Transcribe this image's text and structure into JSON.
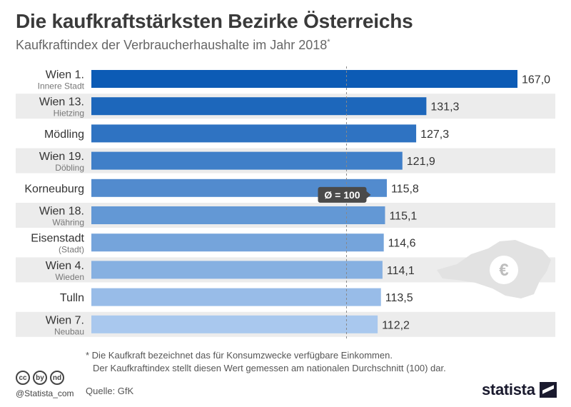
{
  "header": {
    "title": "Die kaufkraftstärksten Bezirke Österreichs",
    "subtitle": "Kaufkraftindex der Verbraucherhaushalte im Jahr 2018",
    "subtitle_mark": "*"
  },
  "footnote": {
    "line1": "* Die Kaufkraft bezeichnet das für Konsumzwecke verfügbare Einkommen.",
    "line2": "Der Kaufkraftindex stellt diesen Wert gemessen am nationalen Durchschnitt (100) dar."
  },
  "source": "Quelle: GfK",
  "handle": "@Statista_com",
  "license_icons": [
    "cc",
    "by",
    "nd"
  ],
  "brand": "statista",
  "decoration": {
    "icon": "austria-map-euro-icon",
    "symbol": "€"
  },
  "colors": {
    "bar_dark": "#0c5bb5",
    "bar_light": "#a9c8ee",
    "row_band": "#ececec",
    "reference_line": "#888888",
    "marker_bg": "#4a4a4a"
  },
  "chart_data": {
    "type": "bar",
    "orientation": "horizontal",
    "categories": [
      {
        "name": "Wien 1.",
        "sub": "Innere Stadt"
      },
      {
        "name": "Wien 13.",
        "sub": "Hietzing"
      },
      {
        "name": "Mödling",
        "sub": ""
      },
      {
        "name": "Wien 19.",
        "sub": "Döbling"
      },
      {
        "name": "Korneuburg",
        "sub": ""
      },
      {
        "name": "Wien 18.",
        "sub": "Währing"
      },
      {
        "name": "Eisenstadt",
        "sub": "(Stadt)"
      },
      {
        "name": "Wien 4.",
        "sub": "Wieden"
      },
      {
        "name": "Tulln",
        "sub": ""
      },
      {
        "name": "Wien 7.",
        "sub": "Neubau"
      }
    ],
    "values": [
      167.0,
      131.3,
      127.3,
      121.9,
      115.8,
      115.1,
      114.6,
      114.1,
      113.5,
      112.2
    ],
    "value_labels": [
      "167,0",
      "131,3",
      "127,3",
      "121,9",
      "115,8",
      "115,1",
      "114,6",
      "114,1",
      "113,5",
      "112,2"
    ],
    "reference": {
      "value": 100,
      "label": "Ø = 100"
    },
    "xlim": [
      0,
      167
    ]
  }
}
